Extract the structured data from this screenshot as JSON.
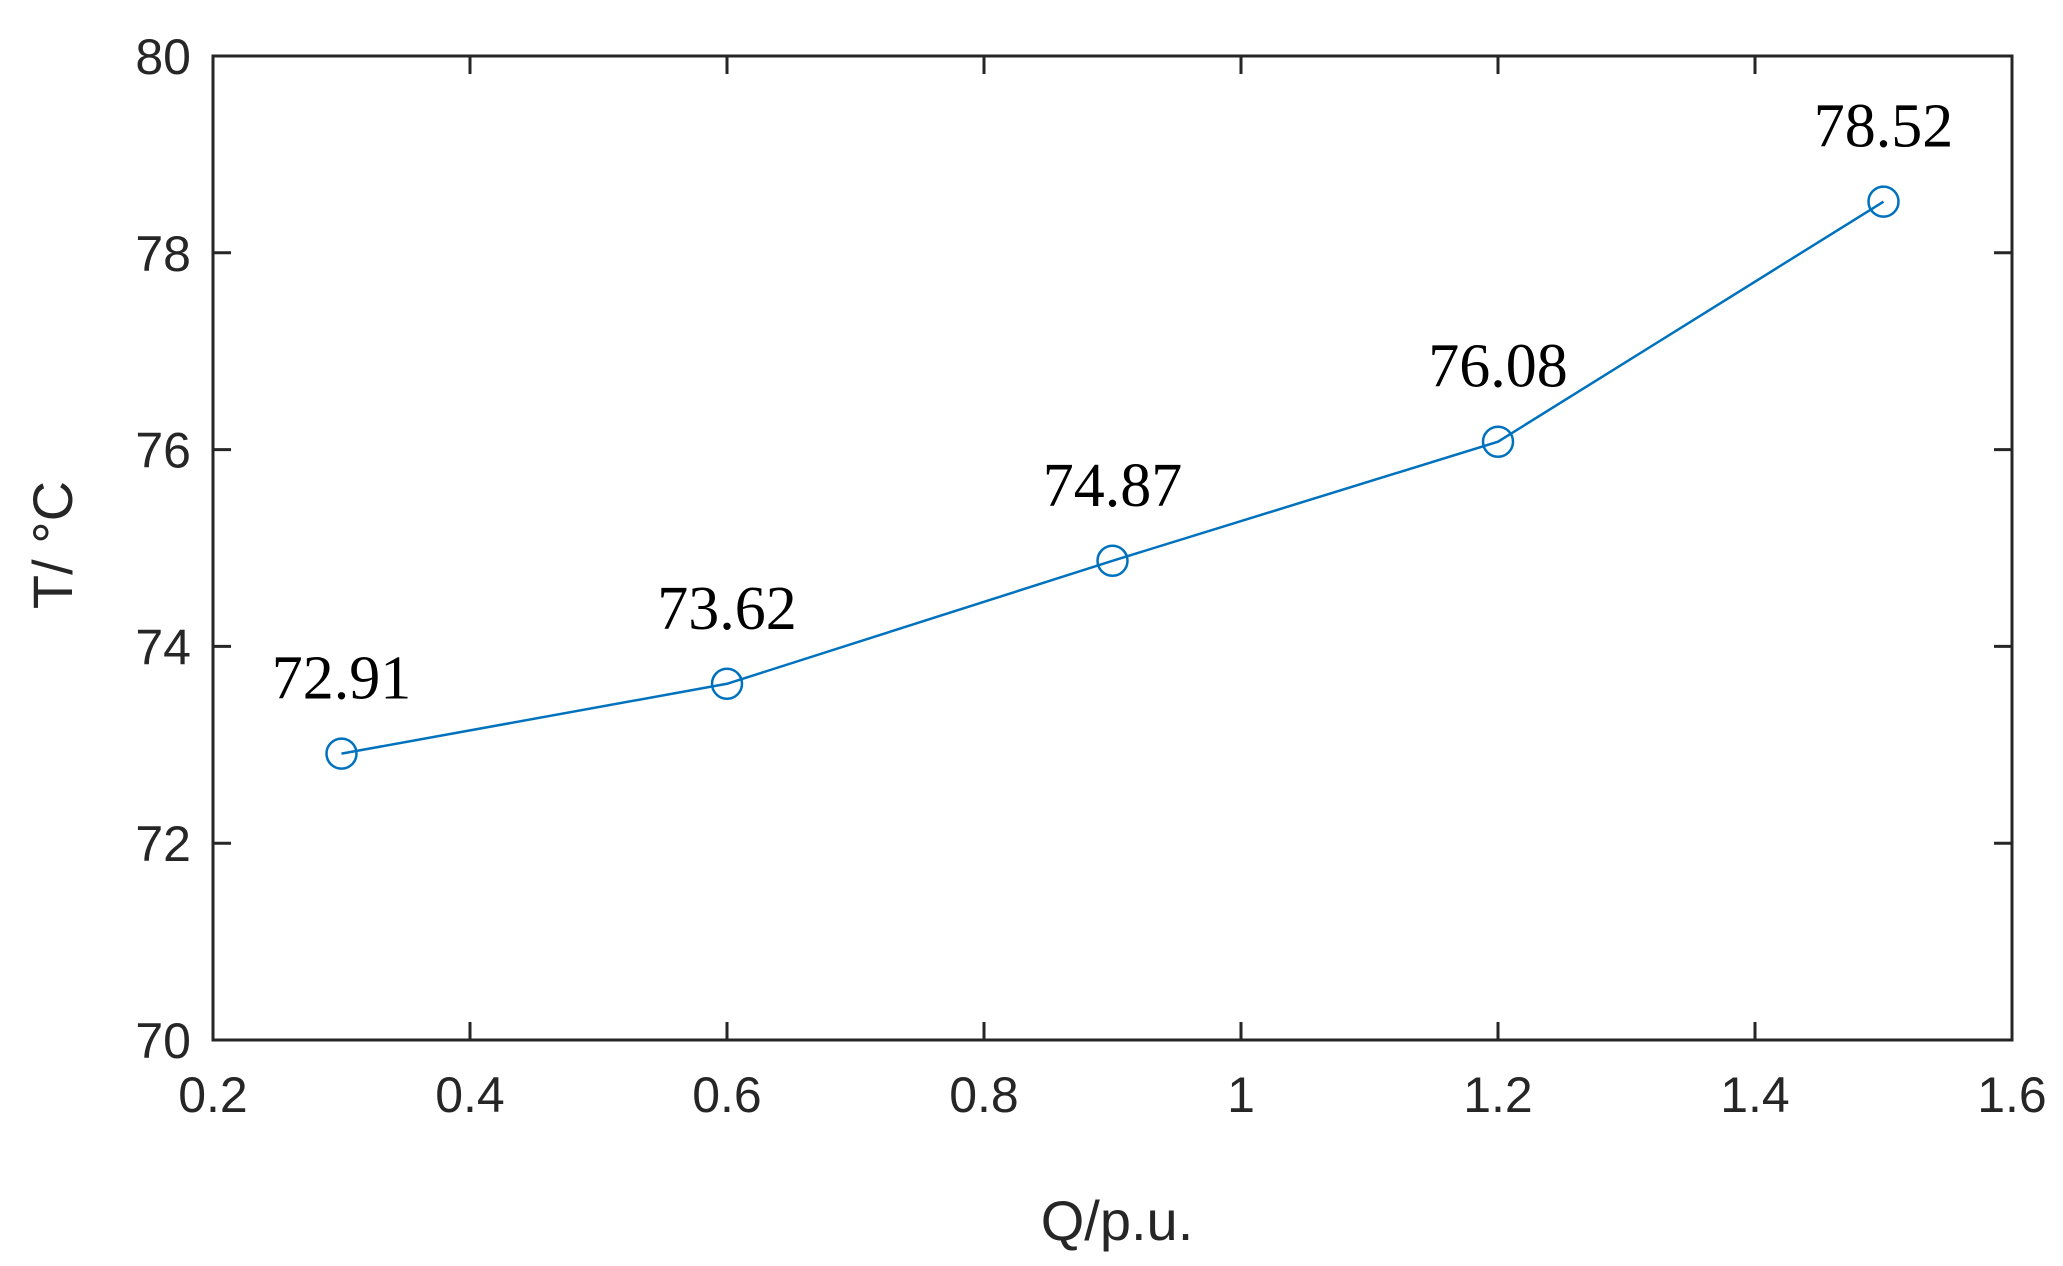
{
  "chart_data": {
    "type": "line",
    "xlabel": "Q/p.u.",
    "ylabel": "T/ °C",
    "xlim": [
      0.2,
      1.6
    ],
    "ylim": [
      70,
      80
    ],
    "x_ticks": [
      0.2,
      0.4,
      0.6,
      0.8,
      1,
      1.2,
      1.4,
      1.6
    ],
    "x_tick_labels": [
      "0.2",
      "0.4",
      "0.6",
      "0.8",
      "1",
      "1.2",
      "1.4",
      "1.6"
    ],
    "y_ticks": [
      70,
      72,
      74,
      76,
      78,
      80
    ],
    "y_tick_labels": [
      "70",
      "72",
      "74",
      "76",
      "78",
      "80"
    ],
    "grid": false,
    "series": [
      {
        "x": [
          0.3,
          0.6,
          0.9,
          1.2,
          1.5
        ],
        "y": [
          72.91,
          73.62,
          74.87,
          76.08,
          78.52
        ],
        "labels": [
          "72.91",
          "73.62",
          "74.87",
          "76.08",
          "78.52"
        ],
        "marker": "open-circle",
        "color": "#0072BD"
      }
    ]
  }
}
